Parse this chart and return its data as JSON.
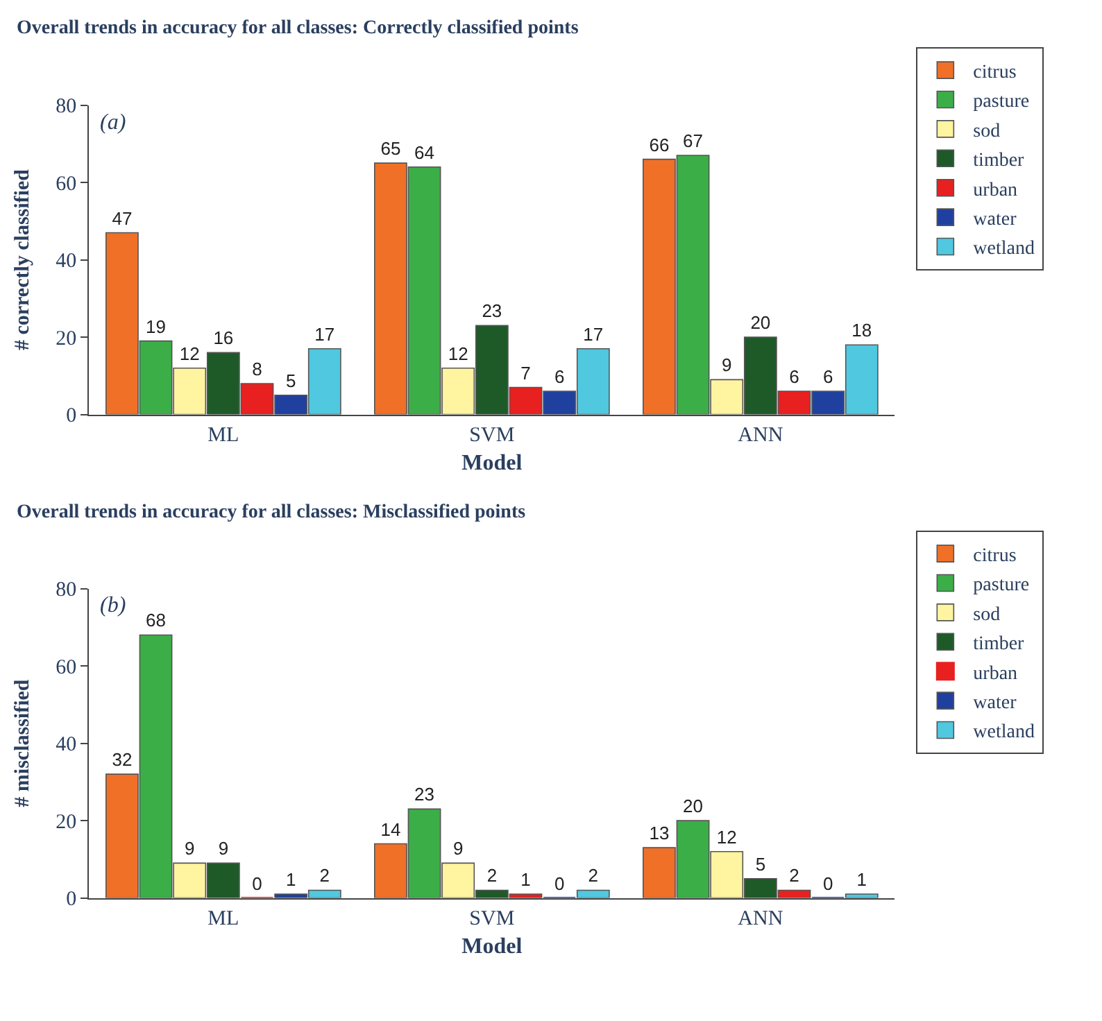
{
  "chart_data": [
    {
      "type": "bar",
      "title": "Overall trends in accuracy for all classes: Correctly classified points",
      "xlabel": "Model",
      "ylabel": "# correctly classified",
      "annotations": [
        "(a)"
      ],
      "categories": [
        "ML",
        "SVM",
        "ANN"
      ],
      "ylim": [
        0,
        80
      ],
      "yticks": [
        0,
        20,
        40,
        60,
        80
      ],
      "data_labels": true,
      "legend": "top right",
      "series": [
        {
          "name": "citrus",
          "color": "#f07028",
          "values": [
            47,
            65,
            66
          ]
        },
        {
          "name": "pasture",
          "color": "#3cae48",
          "values": [
            19,
            64,
            67
          ]
        },
        {
          "name": "sod",
          "color": "#fff4a0",
          "values": [
            12,
            12,
            9
          ]
        },
        {
          "name": "timber",
          "color": "#1e5a28",
          "values": [
            16,
            23,
            20
          ]
        },
        {
          "name": "urban",
          "color": "#e82020",
          "values": [
            8,
            7,
            6
          ]
        },
        {
          "name": "water",
          "color": "#2040a0",
          "values": [
            5,
            6,
            6
          ]
        },
        {
          "name": "wetland",
          "color": "#50c8e0",
          "values": [
            17,
            17,
            18
          ]
        }
      ]
    },
    {
      "type": "bar",
      "title": "Overall trends in accuracy for all classes: Misclassified points",
      "xlabel": "Model",
      "ylabel": "# misclassified",
      "annotations": [
        "(b)"
      ],
      "categories": [
        "ML",
        "SVM",
        "ANN"
      ],
      "ylim": [
        0,
        80
      ],
      "yticks": [
        0,
        20,
        40,
        60,
        80
      ],
      "data_labels": true,
      "legend": "top right",
      "series": [
        {
          "name": "citrus",
          "color": "#f07028",
          "values": [
            32,
            14,
            13
          ]
        },
        {
          "name": "pasture",
          "color": "#3cae48",
          "values": [
            68,
            23,
            20
          ]
        },
        {
          "name": "sod",
          "color": "#fff4a0",
          "values": [
            9,
            9,
            12
          ]
        },
        {
          "name": "timber",
          "color": "#1e5a28",
          "values": [
            9,
            2,
            5
          ]
        },
        {
          "name": "urban",
          "color": "#e82020",
          "values": [
            0,
            1,
            2
          ]
        },
        {
          "name": "water",
          "color": "#2040a0",
          "values": [
            1,
            0,
            0
          ]
        },
        {
          "name": "wetland",
          "color": "#50c8e0",
          "values": [
            2,
            2,
            1
          ]
        }
      ]
    }
  ]
}
